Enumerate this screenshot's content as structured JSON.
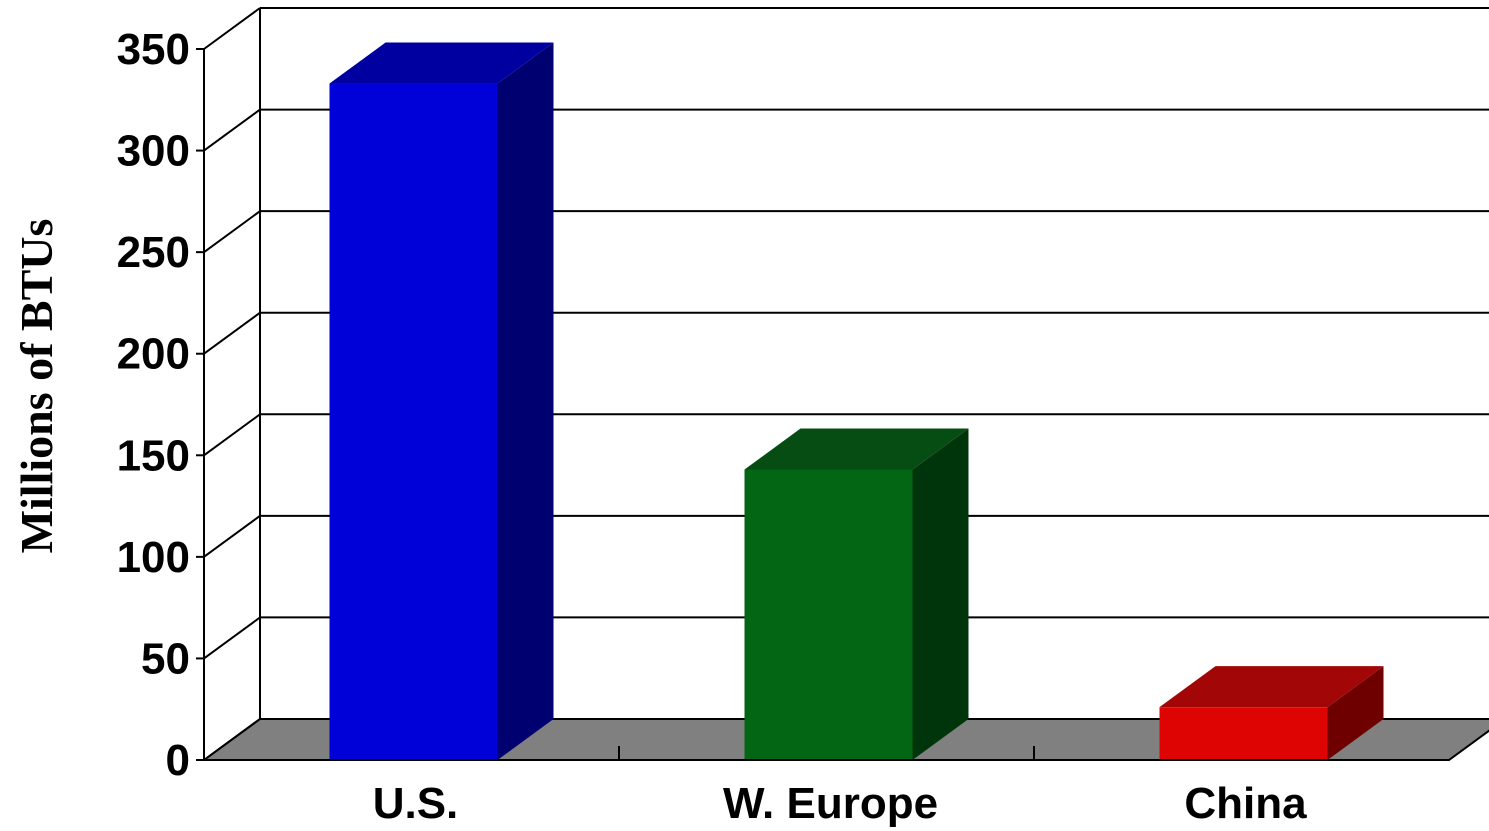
{
  "chart_data": {
    "type": "bar",
    "ylabel": "Millions of BTUs",
    "xlabel": "",
    "categories": [
      "U.S.",
      "W. Europe",
      "China"
    ],
    "values": [
      333,
      143,
      26
    ],
    "ylim": [
      0,
      350
    ],
    "yticks": [
      0,
      50,
      100,
      150,
      200,
      250,
      300,
      350
    ],
    "ytick_labels": [
      "0",
      "50",
      "100",
      "150",
      "200",
      "250",
      "300",
      "350"
    ],
    "three_d": true,
    "grid": true,
    "floor_color": "#808080",
    "bar_colors": [
      {
        "front": "#0000d8",
        "side": "#000070",
        "top": "#0000a0"
      },
      {
        "front": "#036614",
        "side": "#00350b",
        "top": "#054d12"
      },
      {
        "front": "#de0404",
        "side": "#6e0000",
        "top": "#a30606"
      }
    ]
  }
}
